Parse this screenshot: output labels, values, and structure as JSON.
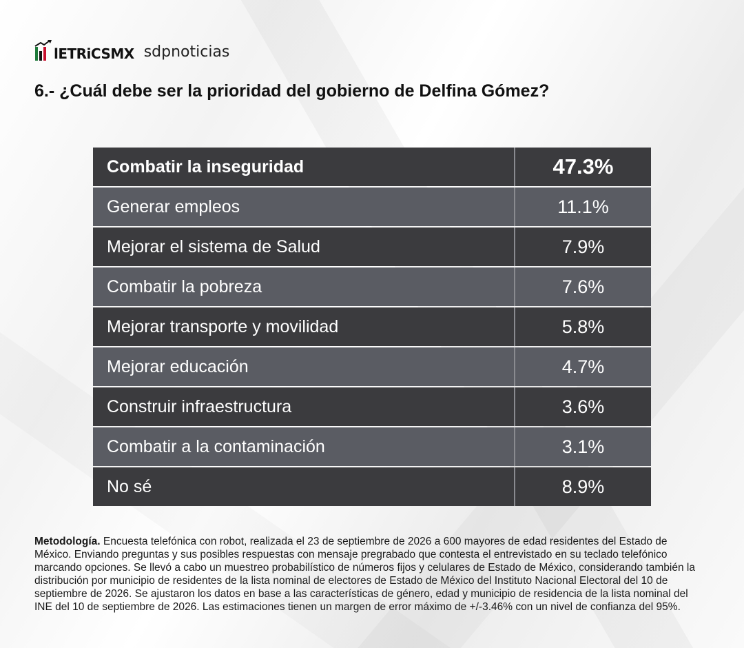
{
  "brand": {
    "logo_text": "lETRiCSMX",
    "partner": "sdpnoticias",
    "colors": {
      "green": "#1f7a3a",
      "red": "#c8102e",
      "dark": "#111111"
    }
  },
  "title": "6.- ¿Cuál debe ser la prioridad del gobierno de Delfina Gómez?",
  "chart_data": {
    "type": "table",
    "rows": [
      {
        "label": "Combatir la inseguridad",
        "value": "47.3%"
      },
      {
        "label": "Generar empleos",
        "value": "11.1%"
      },
      {
        "label": "Mejorar el sistema de Salud",
        "value": "7.9%"
      },
      {
        "label": "Combatir la pobreza",
        "value": "7.6%"
      },
      {
        "label": "Mejorar transporte y movilidad",
        "value": "5.8%"
      },
      {
        "label": "Mejorar educación",
        "value": "4.7%"
      },
      {
        "label": "Construir infraestructura",
        "value": "3.6%"
      },
      {
        "label": "Combatir a la contaminación",
        "value": "3.1%"
      },
      {
        "label": "No sé",
        "value": "8.9%"
      }
    ],
    "colors": {
      "dark_row": "#3b3b3e",
      "light_row": "#5a5c63"
    }
  },
  "methodology": {
    "heading": "Metodología.",
    "text": " Encuesta telefónica con robot, realizada el 23 de septiembre de 2026 a 600 mayores de edad residentes del Estado de México. Enviando preguntas y sus posibles respuestas con mensaje pregrabado que contesta el entrevistado en su teclado telefónico marcando opciones. Se llevó a cabo un muestreo probabilístico de números fijos y celulares de Estado de México, considerando también la distribución por municipio de residentes de la lista nominal de electores de Estado de México del Instituto Nacional Electoral del 10 de septiembre de 2026. Se ajustaron los datos en base a las características de género, edad y municipio de residencia de la lista nominal del INE del 10 de septiembre de 2026. Las estimaciones tienen un margen de error máximo de +/-3.46% con un nivel de confianza del 95%."
  }
}
